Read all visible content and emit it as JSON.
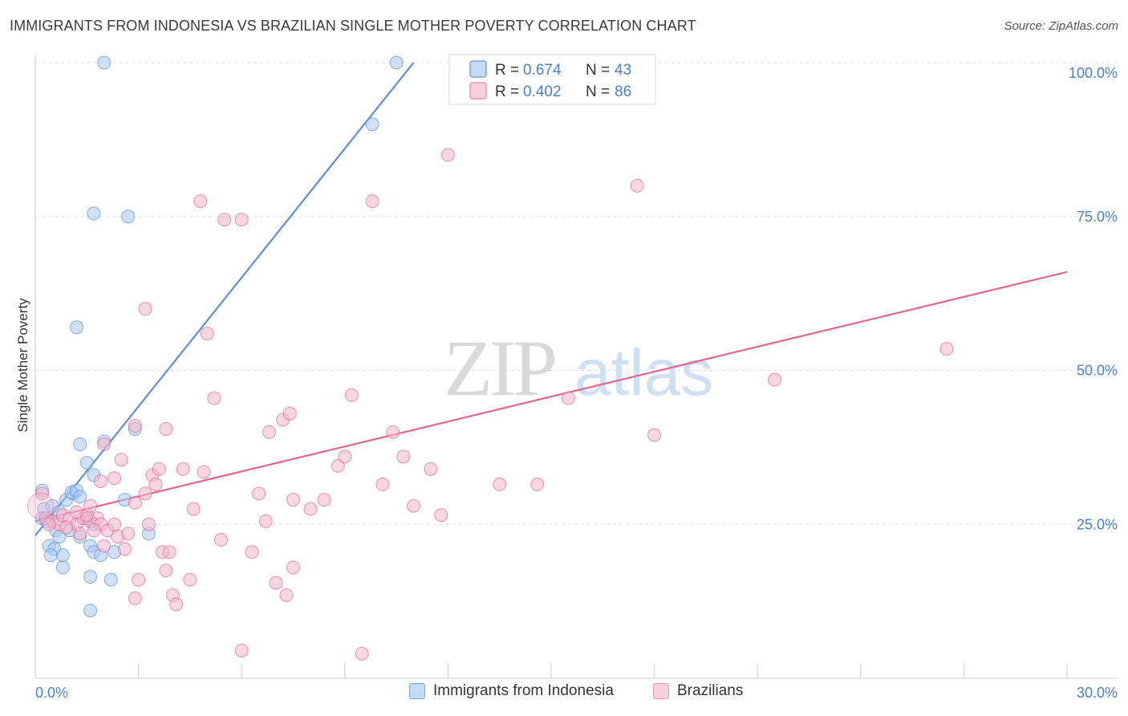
{
  "chart_data": {
    "type": "scatter",
    "title": "IMMIGRANTS FROM INDONESIA VS BRAZILIAN SINGLE MOTHER POVERTY CORRELATION CHART",
    "source": "Source: ZipAtlas.com",
    "watermark": {
      "zip": "ZIP",
      "atlas": "atlas"
    },
    "xlabel": "",
    "ylabel": "Single Mother Poverty",
    "xlim": [
      0,
      30
    ],
    "ylim": [
      0,
      100
    ],
    "x_tick_labels": [
      {
        "value": 0,
        "label": "0.0%"
      },
      {
        "value": 30,
        "label": "30.0%"
      }
    ],
    "y_tick_labels": [
      {
        "value": 25,
        "label": "25.0%"
      },
      {
        "value": 50,
        "label": "50.0%"
      },
      {
        "value": 75,
        "label": "75.0%"
      },
      {
        "value": 100,
        "label": "100.0%"
      }
    ],
    "grid": true,
    "legend": [
      {
        "name": "Immigrants from Indonesia",
        "r_label": "R =",
        "r": "0.674",
        "n_label": "N =",
        "n": "43"
      },
      {
        "name": "Brazilians",
        "r_label": "R =",
        "r": "0.402",
        "n_label": "N =",
        "n": "86"
      }
    ],
    "series": [
      {
        "name": "Immigrants from Indonesia",
        "color": "#5b8fd6",
        "fill": "#a9c8f0",
        "trendline": {
          "x": [
            0,
            11
          ],
          "y": [
            23.2,
            100
          ]
        },
        "points": [
          [
            0.2,
            30.5
          ],
          [
            0.3,
            26
          ],
          [
            0.25,
            27.5
          ],
          [
            0.5,
            28
          ],
          [
            0.6,
            24
          ],
          [
            0.7,
            27
          ],
          [
            0.9,
            29
          ],
          [
            1.0,
            24
          ],
          [
            0.4,
            21.5
          ],
          [
            0.55,
            21
          ],
          [
            0.7,
            23
          ],
          [
            0.8,
            20
          ],
          [
            0.45,
            20
          ],
          [
            0.8,
            18
          ],
          [
            1.1,
            30
          ],
          [
            1.05,
            30.2
          ],
          [
            1.2,
            30.5
          ],
          [
            1.3,
            29.5
          ],
          [
            1.5,
            35
          ],
          [
            1.3,
            38
          ],
          [
            1.7,
            33
          ],
          [
            2.0,
            38.5
          ],
          [
            2.6,
            29
          ],
          [
            2.9,
            40.5
          ],
          [
            1.6,
            21.5
          ],
          [
            1.7,
            20.5
          ],
          [
            1.9,
            20
          ],
          [
            2.3,
            20.5
          ],
          [
            3.3,
            23.5
          ],
          [
            1.3,
            23
          ],
          [
            1.6,
            16.5
          ],
          [
            2.2,
            16
          ],
          [
            1.6,
            11
          ],
          [
            1.2,
            57
          ],
          [
            1.7,
            75.5
          ],
          [
            2.7,
            75
          ],
          [
            2.0,
            100
          ],
          [
            10.5,
            100
          ],
          [
            9.8,
            90
          ],
          [
            1.5,
            26
          ],
          [
            1.7,
            25
          ],
          [
            0.2,
            26
          ],
          [
            0.35,
            25.5
          ]
        ]
      },
      {
        "name": "Brazilians",
        "color": "#e36591",
        "fill": "#f4b6cb",
        "trendline": {
          "x": [
            0,
            30
          ],
          "y": [
            25.5,
            66
          ]
        },
        "points": [
          [
            0.2,
            30
          ],
          [
            0.3,
            26
          ],
          [
            0.5,
            25.5
          ],
          [
            0.7,
            25
          ],
          [
            0.8,
            26.5
          ],
          [
            1.0,
            26
          ],
          [
            1.2,
            25
          ],
          [
            1.4,
            26
          ],
          [
            1.6,
            25.5
          ],
          [
            1.8,
            26
          ],
          [
            1.9,
            25
          ],
          [
            1.7,
            24
          ],
          [
            1.5,
            26.5
          ],
          [
            1.3,
            23.5
          ],
          [
            1.6,
            28
          ],
          [
            2.0,
            21.5
          ],
          [
            2.1,
            24
          ],
          [
            2.3,
            25
          ],
          [
            2.4,
            23
          ],
          [
            2.6,
            21
          ],
          [
            2.7,
            23.5
          ],
          [
            1.9,
            32
          ],
          [
            2.0,
            38
          ],
          [
            2.3,
            32.5
          ],
          [
            2.5,
            35.5
          ],
          [
            2.9,
            41
          ],
          [
            2.9,
            28.5
          ],
          [
            3.2,
            30
          ],
          [
            3.4,
            33
          ],
          [
            3.5,
            31.5
          ],
          [
            3.6,
            34
          ],
          [
            3.8,
            40.5
          ],
          [
            3.3,
            25
          ],
          [
            3.7,
            20.5
          ],
          [
            3.9,
            20.5
          ],
          [
            3.8,
            17.5
          ],
          [
            4.0,
            13.5
          ],
          [
            4.1,
            12
          ],
          [
            4.3,
            34
          ],
          [
            4.5,
            16
          ],
          [
            4.6,
            27.5
          ],
          [
            4.9,
            33.5
          ],
          [
            5.4,
            22.5
          ],
          [
            5.2,
            45.5
          ],
          [
            5.5,
            74.5
          ],
          [
            6.0,
            74.5
          ],
          [
            4.8,
            77.5
          ],
          [
            3.2,
            60
          ],
          [
            5.0,
            56
          ],
          [
            6.5,
            30
          ],
          [
            6.7,
            25.5
          ],
          [
            6.8,
            40
          ],
          [
            7.2,
            42
          ],
          [
            7.4,
            43
          ],
          [
            7.5,
            29
          ],
          [
            6.3,
            20.5
          ],
          [
            7.0,
            15.5
          ],
          [
            7.5,
            18
          ],
          [
            7.3,
            13.5
          ],
          [
            8.0,
            27.5
          ],
          [
            8.4,
            29
          ],
          [
            8.8,
            34.5
          ],
          [
            9.0,
            36
          ],
          [
            9.2,
            46
          ],
          [
            9.8,
            77.5
          ],
          [
            10.1,
            31.5
          ],
          [
            10.4,
            40
          ],
          [
            10.7,
            36
          ],
          [
            11.0,
            28
          ],
          [
            11.5,
            34
          ],
          [
            11.8,
            26.5
          ],
          [
            12.0,
            85
          ],
          [
            13.5,
            31.5
          ],
          [
            14.6,
            31.5
          ],
          [
            15.5,
            45.5
          ],
          [
            17.5,
            80
          ],
          [
            18.0,
            39.5
          ],
          [
            21.5,
            48.5
          ],
          [
            26.5,
            53.5
          ],
          [
            6.0,
            4.5
          ],
          [
            9.5,
            4
          ],
          [
            3.0,
            16
          ],
          [
            2.9,
            13
          ],
          [
            1.2,
            27
          ],
          [
            0.9,
            24.5
          ],
          [
            0.4,
            25
          ]
        ]
      }
    ]
  }
}
